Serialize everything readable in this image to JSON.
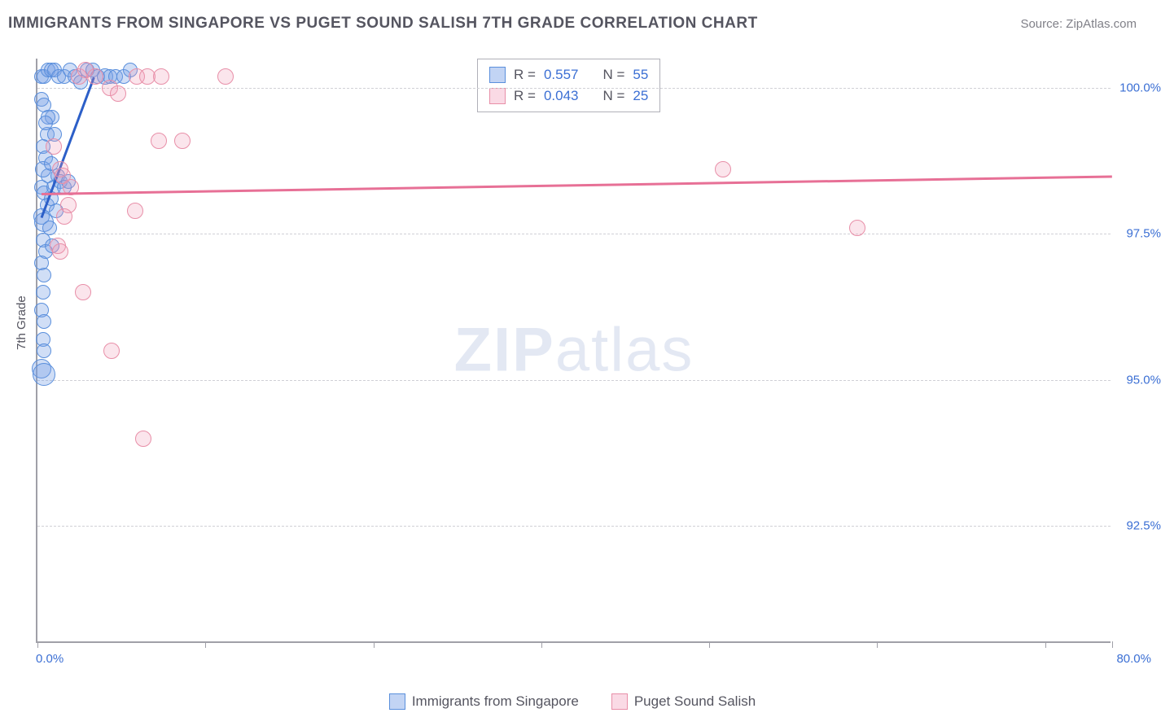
{
  "header": {
    "title": "IMMIGRANTS FROM SINGAPORE VS PUGET SOUND SALISH 7TH GRADE CORRELATION CHART",
    "source_label": "Source: ZipAtlas.com"
  },
  "chart": {
    "type": "scatter",
    "ylabel": "7th Grade",
    "xlim": [
      0.0,
      80.0
    ],
    "ylim": [
      90.5,
      100.5
    ],
    "xtick_positions": [
      0.0,
      12.5,
      25.0,
      37.5,
      50.0,
      62.5,
      75.0,
      80.0
    ],
    "xtick_labels": {
      "min": "0.0%",
      "max": "80.0%"
    },
    "ytick_positions": [
      92.5,
      95.0,
      97.5,
      100.0
    ],
    "ytick_labels": [
      "92.5%",
      "95.0%",
      "97.5%",
      "100.0%"
    ],
    "grid_color": "#d0d0d6",
    "axis_color": "#a0a0a8",
    "background_color": "#ffffff",
    "watermark": {
      "bold": "ZIP",
      "light": "atlas"
    },
    "series": [
      {
        "name": "Immigrants from Singapore",
        "fill_color": "rgba(120,160,230,0.35)",
        "stroke_color": "#5a8fdc",
        "line_color": "#2c5fc8",
        "marker_radius": 9,
        "R": 0.557,
        "N": 55,
        "trend": {
          "x1": 0.3,
          "y1": 97.8,
          "x2": 4.2,
          "y2": 100.2
        },
        "points": [
          {
            "x": 0.3,
            "y": 100.2,
            "r": 9
          },
          {
            "x": 0.5,
            "y": 100.2,
            "r": 9
          },
          {
            "x": 0.8,
            "y": 100.3,
            "r": 9
          },
          {
            "x": 1.0,
            "y": 100.3,
            "r": 9
          },
          {
            "x": 1.3,
            "y": 100.3,
            "r": 9
          },
          {
            "x": 1.6,
            "y": 100.2,
            "r": 9
          },
          {
            "x": 2.0,
            "y": 100.2,
            "r": 9
          },
          {
            "x": 2.4,
            "y": 100.3,
            "r": 9
          },
          {
            "x": 2.8,
            "y": 100.2,
            "r": 9
          },
          {
            "x": 3.2,
            "y": 100.1,
            "r": 9
          },
          {
            "x": 3.7,
            "y": 100.3,
            "r": 9
          },
          {
            "x": 4.1,
            "y": 100.3,
            "r": 9
          },
          {
            "x": 4.5,
            "y": 100.2,
            "r": 9
          },
          {
            "x": 5.0,
            "y": 100.2,
            "r": 10
          },
          {
            "x": 5.4,
            "y": 100.2,
            "r": 9
          },
          {
            "x": 5.8,
            "y": 100.2,
            "r": 9
          },
          {
            "x": 6.4,
            "y": 100.2,
            "r": 9
          },
          {
            "x": 6.9,
            "y": 100.3,
            "r": 9
          },
          {
            "x": 0.3,
            "y": 99.8,
            "r": 9
          },
          {
            "x": 0.5,
            "y": 99.7,
            "r": 9
          },
          {
            "x": 0.7,
            "y": 99.2,
            "r": 9
          },
          {
            "x": 0.4,
            "y": 99.0,
            "r": 9
          },
          {
            "x": 0.6,
            "y": 98.8,
            "r": 9
          },
          {
            "x": 0.8,
            "y": 98.5,
            "r": 9
          },
          {
            "x": 0.4,
            "y": 98.6,
            "r": 10
          },
          {
            "x": 0.3,
            "y": 98.3,
            "r": 9
          },
          {
            "x": 0.5,
            "y": 98.2,
            "r": 9
          },
          {
            "x": 0.7,
            "y": 98.0,
            "r": 9
          },
          {
            "x": 0.3,
            "y": 97.8,
            "r": 10
          },
          {
            "x": 0.5,
            "y": 97.7,
            "r": 12
          },
          {
            "x": 0.4,
            "y": 97.4,
            "r": 9
          },
          {
            "x": 0.6,
            "y": 97.2,
            "r": 9
          },
          {
            "x": 0.3,
            "y": 97.0,
            "r": 9
          },
          {
            "x": 0.5,
            "y": 96.8,
            "r": 9
          },
          {
            "x": 0.4,
            "y": 96.5,
            "r": 9
          },
          {
            "x": 0.3,
            "y": 96.2,
            "r": 9
          },
          {
            "x": 0.5,
            "y": 96.0,
            "r": 9
          },
          {
            "x": 0.4,
            "y": 95.7,
            "r": 9
          },
          {
            "x": 0.5,
            "y": 95.5,
            "r": 9
          },
          {
            "x": 0.3,
            "y": 95.2,
            "r": 12
          },
          {
            "x": 0.5,
            "y": 95.1,
            "r": 14
          },
          {
            "x": 1.1,
            "y": 99.5,
            "r": 9
          },
          {
            "x": 1.3,
            "y": 99.2,
            "r": 9
          },
          {
            "x": 1.0,
            "y": 98.7,
            "r": 9
          },
          {
            "x": 1.5,
            "y": 98.5,
            "r": 9
          },
          {
            "x": 1.2,
            "y": 98.3,
            "r": 9
          },
          {
            "x": 1.0,
            "y": 98.1,
            "r": 9
          },
          {
            "x": 0.8,
            "y": 99.5,
            "r": 9
          },
          {
            "x": 1.7,
            "y": 98.4,
            "r": 9
          },
          {
            "x": 1.4,
            "y": 97.9,
            "r": 9
          },
          {
            "x": 0.9,
            "y": 97.6,
            "r": 9
          },
          {
            "x": 1.1,
            "y": 97.3,
            "r": 9
          },
          {
            "x": 2.0,
            "y": 98.3,
            "r": 9
          },
          {
            "x": 2.3,
            "y": 98.4,
            "r": 9
          },
          {
            "x": 0.6,
            "y": 99.4,
            "r": 9
          }
        ]
      },
      {
        "name": "Puget Sound Salish",
        "fill_color": "rgba(240,150,180,0.25)",
        "stroke_color": "#e88fa8",
        "line_color": "#e77096",
        "marker_radius": 10,
        "R": 0.043,
        "N": 25,
        "trend": {
          "x1": 0.3,
          "y1": 98.2,
          "x2": 80.0,
          "y2": 98.5
        },
        "points": [
          {
            "x": 4.3,
            "y": 100.2,
            "r": 10
          },
          {
            "x": 5.4,
            "y": 100.0,
            "r": 10
          },
          {
            "x": 6.0,
            "y": 99.9,
            "r": 10
          },
          {
            "x": 7.4,
            "y": 100.2,
            "r": 10
          },
          {
            "x": 8.2,
            "y": 100.2,
            "r": 10
          },
          {
            "x": 9.2,
            "y": 100.2,
            "r": 10
          },
          {
            "x": 14.0,
            "y": 100.2,
            "r": 10
          },
          {
            "x": 9.0,
            "y": 99.1,
            "r": 10
          },
          {
            "x": 10.8,
            "y": 99.1,
            "r": 10
          },
          {
            "x": 1.7,
            "y": 98.6,
            "r": 10
          },
          {
            "x": 1.9,
            "y": 98.5,
            "r": 10
          },
          {
            "x": 2.3,
            "y": 98.0,
            "r": 10
          },
          {
            "x": 2.0,
            "y": 97.8,
            "r": 10
          },
          {
            "x": 1.5,
            "y": 97.3,
            "r": 10
          },
          {
            "x": 1.7,
            "y": 97.2,
            "r": 10
          },
          {
            "x": 7.3,
            "y": 97.9,
            "r": 10
          },
          {
            "x": 3.4,
            "y": 96.5,
            "r": 10
          },
          {
            "x": 5.5,
            "y": 95.5,
            "r": 10
          },
          {
            "x": 7.9,
            "y": 94.0,
            "r": 10
          },
          {
            "x": 51.0,
            "y": 98.6,
            "r": 10
          },
          {
            "x": 61.0,
            "y": 97.6,
            "r": 10
          },
          {
            "x": 1.2,
            "y": 99.0,
            "r": 10
          },
          {
            "x": 2.5,
            "y": 98.3,
            "r": 10
          },
          {
            "x": 3.1,
            "y": 100.2,
            "r": 10
          },
          {
            "x": 3.6,
            "y": 100.3,
            "r": 10
          }
        ]
      }
    ],
    "legend_top": {
      "r_label": "R =",
      "n_label": "N ="
    },
    "legend_bottom_labels": [
      "Immigrants from Singapore",
      "Puget Sound Salish"
    ]
  }
}
